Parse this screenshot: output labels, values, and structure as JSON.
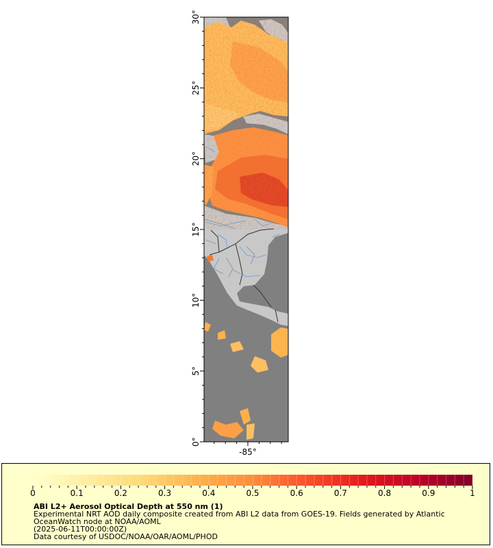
{
  "map": {
    "latitude_axis": {
      "ticks": [
        {
          "value": 30,
          "label": "30°"
        },
        {
          "value": 25,
          "label": "25°"
        },
        {
          "value": 20,
          "label": "20°"
        },
        {
          "value": 15,
          "label": "15°"
        },
        {
          "value": 10,
          "label": "10°"
        },
        {
          "value": 5,
          "label": "5°"
        },
        {
          "value": 0,
          "label": "0°"
        }
      ],
      "range": [
        0,
        30
      ]
    },
    "longitude_axis": {
      "ticks": [
        {
          "value": -85,
          "label": "-85°"
        }
      ]
    },
    "colors": {
      "ocean": "#808080",
      "land": "#c8c8c8",
      "borders": "#333333",
      "rivers": "#6a9ad4"
    }
  },
  "legend": {
    "title": "ABI L2+ Aerosol Optical Depth at 550 nm (1)",
    "description": "Experimental NRT AOD daily composite created from ABI L2 data from GOES-19. Fields generated by Atlantic OceanWatch node at NOAA/AOML",
    "timestamp": "(2025-06-11T00:00:00Z)",
    "credit": "Data courtesy of USDOC/NOAA/OAR/AOML/PHOD",
    "colorbar": {
      "min": 0,
      "max": 1,
      "tick_labels": [
        "0",
        "0.1",
        "0.2",
        "0.3",
        "0.4",
        "0.5",
        "0.6",
        "0.7",
        "0.8",
        "0.9",
        "1"
      ],
      "color_stops": [
        "#ffffcc",
        "#ffeda0",
        "#fed976",
        "#feb24c",
        "#fd8d3c",
        "#fc4e2a",
        "#e31a1c",
        "#bd0026",
        "#800026"
      ]
    }
  }
}
